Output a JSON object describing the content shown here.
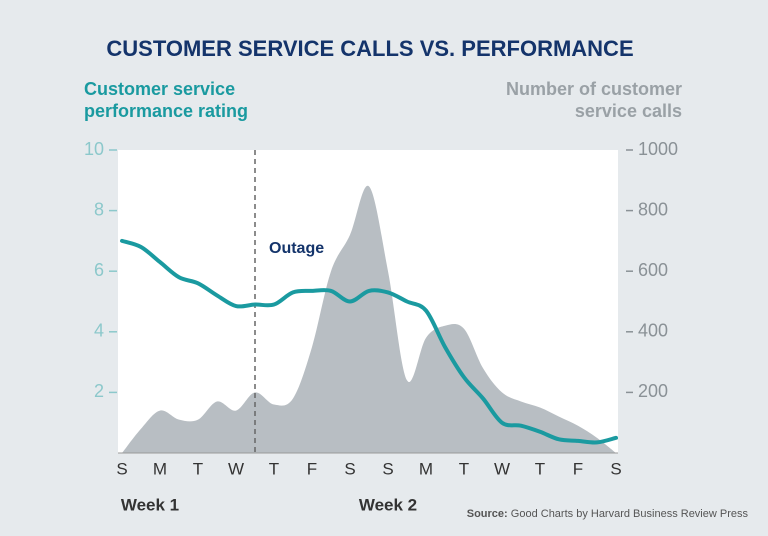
{
  "chart_data": {
    "type": "line",
    "title": "CUSTOMER SERVICE CALLS VS. PERFORMANCE",
    "y_label": [
      "Customer service",
      "performance rating"
    ],
    "y2_label": [
      "Number of customer",
      "service calls"
    ],
    "categories": [
      "S",
      null,
      "M",
      null,
      "T",
      null,
      "W",
      null,
      "T",
      null,
      "F",
      null,
      "S",
      null,
      "S",
      null,
      "M",
      null,
      "T",
      null,
      "W",
      null,
      "T",
      null,
      "F",
      null,
      "S"
    ],
    "series": [
      {
        "name": "Number of customer service calls",
        "color": "#b8bec3",
        "axis": "y2",
        "fill": true,
        "values": [
          0,
          80,
          140,
          110,
          110,
          170,
          140,
          200,
          160,
          180,
          350,
          600,
          720,
          880,
          600,
          240,
          380,
          420,
          410,
          280,
          200,
          170,
          150,
          120,
          90,
          50,
          0
        ]
      },
      {
        "name": "Customer service performance rating",
        "color": "#1a9aa0",
        "values": [
          7.0,
          6.8,
          6.3,
          5.8,
          5.6,
          5.2,
          4.85,
          4.9,
          4.9,
          5.3,
          5.35,
          5.35,
          5.0,
          5.35,
          5.3,
          5.0,
          4.7,
          3.5,
          2.5,
          1.8,
          1.0,
          0.9,
          0.7,
          0.45,
          0.4,
          0.35,
          0.5
        ]
      }
    ],
    "ylim": [
      0,
      10
    ],
    "yticks": [
      2,
      4,
      6,
      8,
      10
    ],
    "y2lim": [
      0,
      1000
    ],
    "y2ticks": [
      200,
      400,
      600,
      800,
      1000
    ],
    "annotations": [
      {
        "text": "Outage",
        "category_index": 7
      }
    ],
    "groups": [
      "Week 1",
      "Week 2"
    ],
    "source": {
      "label": "Source:",
      "text": "Good Charts by Harvard Business Review Press"
    }
  }
}
